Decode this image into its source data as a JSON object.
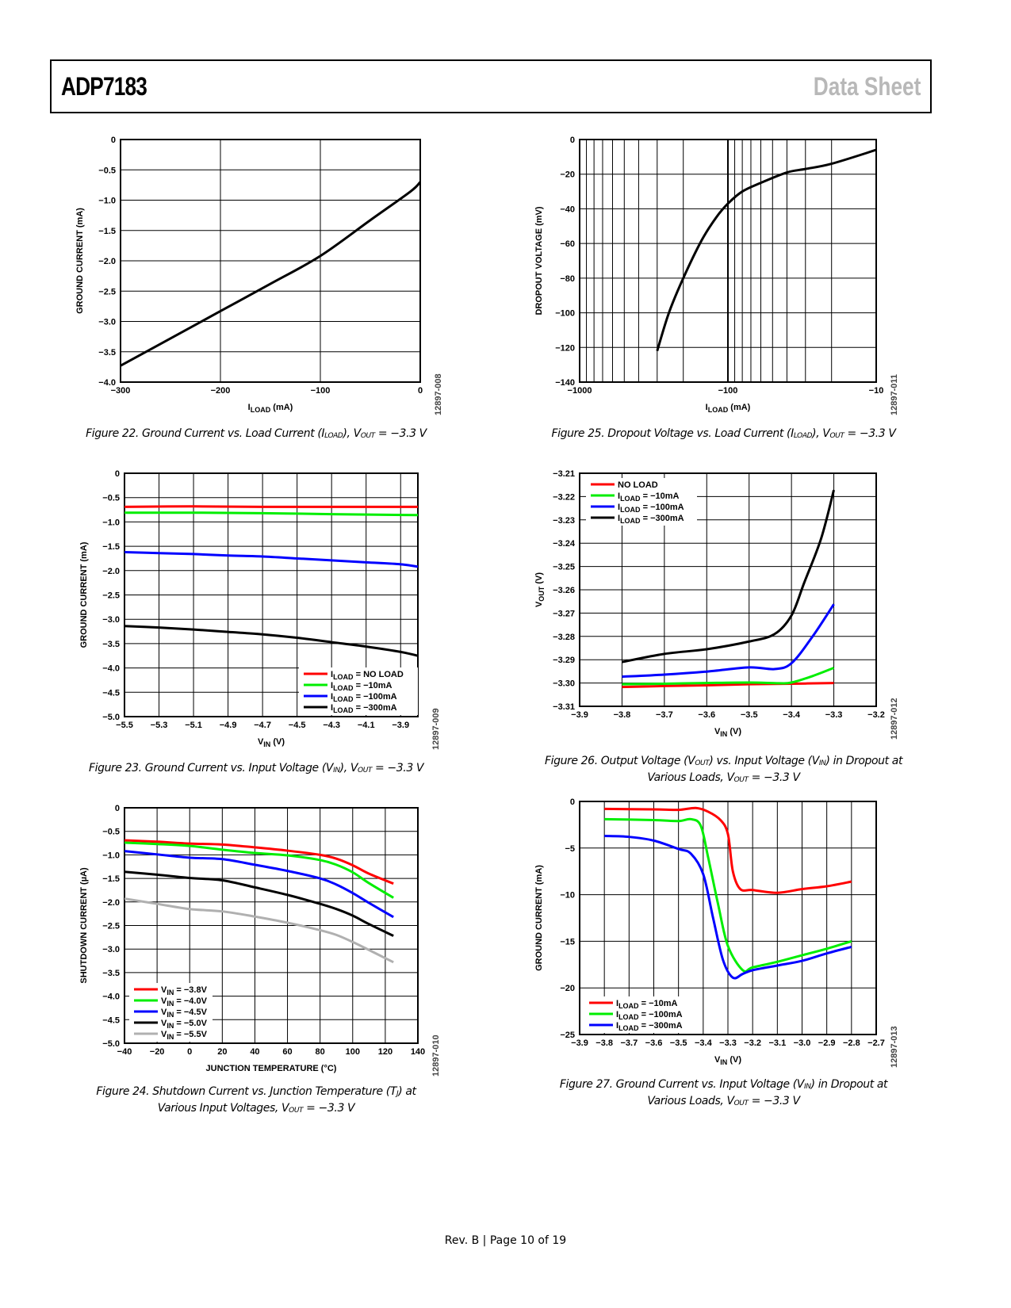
{
  "header": {
    "product": "ADP7183",
    "doc_type": "Data Sheet"
  },
  "footer": {
    "text": "Rev. B | Page 10 of 19"
  },
  "chart_data": [
    {
      "id": "fig22",
      "type": "line",
      "caption": "Figure 22. Ground Current vs. Load Current (Iₗₒₐᴅ), Vₒᵤₜ = −3.3 V",
      "caption_text": "Figure 22. Ground Current vs. Load Current (ILOAD), VOUT = −3.3 V",
      "tag": "12897-008",
      "xlabel": "I_LOAD (mA)",
      "ylabel": "GROUND CURRENT (mA)",
      "xscale": "linear",
      "xlim": [
        -300,
        0
      ],
      "ylim": [
        -4.0,
        0
      ],
      "xticks": [
        -300,
        -200,
        -100,
        0
      ],
      "xtick_labels": [
        "−300",
        "−200",
        "−100",
        "0"
      ],
      "yticks": [
        0,
        -0.5,
        -1.0,
        -1.5,
        -2.0,
        -2.5,
        -3.0,
        -3.5,
        -4.0
      ],
      "ytick_labels": [
        "0",
        "−0.5",
        "−1.0",
        "−1.5",
        "−2.0",
        "−2.5",
        "−3.0",
        "−3.5",
        "−4.0"
      ],
      "grid": true,
      "series": [
        {
          "name": "",
          "color": "#000000",
          "x": [
            -300,
            -250,
            -200,
            -150,
            -100,
            -50,
            -10,
            0
          ],
          "y": [
            -3.73,
            -3.28,
            -2.83,
            -2.38,
            -1.92,
            -1.33,
            -0.86,
            -0.7
          ]
        }
      ]
    },
    {
      "id": "fig25",
      "type": "line",
      "caption_text": "Figure 25. Dropout Voltage vs. Load Current (ILOAD), VOUT = −3.3 V",
      "tag": "12897-011",
      "xlabel": "I_LOAD (mA)",
      "ylabel": "DROPOUT VOLTAGE (mV)",
      "xscale": "log-magnitude",
      "xlim": [
        -1000,
        -10
      ],
      "ylim": [
        -140,
        0
      ],
      "xticks": [
        -1000,
        -100,
        -10
      ],
      "xtick_labels": [
        "−1000",
        "−100",
        "−10"
      ],
      "yticks": [
        0,
        -20,
        -40,
        -60,
        -80,
        -100,
        -120,
        -140
      ],
      "ytick_labels": [
        "0",
        "−20",
        "−40",
        "−60",
        "−80",
        "−100",
        "−120",
        "−140"
      ],
      "grid": true,
      "series": [
        {
          "name": "",
          "color": "#000000",
          "x": [
            -300,
            -250,
            -200,
            -150,
            -120,
            -100,
            -80,
            -60,
            -40,
            -30,
            -20,
            -10
          ],
          "y": [
            -122,
            -100,
            -80,
            -58,
            -45,
            -37,
            -30,
            -25,
            -19,
            -17,
            -14,
            -6
          ]
        }
      ]
    },
    {
      "id": "fig23",
      "type": "line",
      "caption_text": "Figure 23. Ground Current vs. Input Voltage (VIN), VOUT = −3.3 V",
      "tag": "12897-009",
      "xlabel": "V_IN (V)",
      "ylabel": "GROUND CURRENT (mA)",
      "xlim": [
        -5.5,
        -3.8
      ],
      "ylim": [
        -5.0,
        0
      ],
      "xticks": [
        -5.5,
        -5.3,
        -5.1,
        -4.9,
        -4.7,
        -4.5,
        -4.3,
        -4.1,
        -3.9
      ],
      "xtick_labels": [
        "−5.5",
        "−5.3",
        "−5.1",
        "−4.9",
        "−4.7",
        "−4.5",
        "−4.3",
        "−4.1",
        "−3.9"
      ],
      "yticks": [
        0,
        -0.5,
        -1.0,
        -1.5,
        -2.0,
        -2.5,
        -3.0,
        -3.5,
        -4.0,
        -4.5,
        -5.0
      ],
      "ytick_labels": [
        "0",
        "−0.5",
        "−1.0",
        "−1.5",
        "−2.0",
        "−2.5",
        "−3.0",
        "−3.5",
        "−4.0",
        "−4.5",
        "−5.0"
      ],
      "grid": true,
      "legend": "bottom-right",
      "series": [
        {
          "name": "I_LOAD = NO LOAD",
          "color": "#ff0000",
          "x": [
            -5.5,
            -5.1,
            -4.7,
            -4.3,
            -3.8
          ],
          "y": [
            -0.69,
            -0.68,
            -0.69,
            -0.69,
            -0.69
          ]
        },
        {
          "name": "I_LOAD = −10mA",
          "color": "#00ee00",
          "x": [
            -5.5,
            -5.1,
            -4.7,
            -4.3,
            -3.8
          ],
          "y": [
            -0.81,
            -0.81,
            -0.82,
            -0.84,
            -0.86
          ]
        },
        {
          "name": "I_LOAD = −100mA",
          "color": "#0000ff",
          "x": [
            -5.5,
            -5.3,
            -5.1,
            -4.9,
            -4.7,
            -4.5,
            -4.3,
            -4.1,
            -3.9,
            -3.8
          ],
          "y": [
            -1.62,
            -1.64,
            -1.66,
            -1.69,
            -1.71,
            -1.75,
            -1.79,
            -1.83,
            -1.87,
            -1.92
          ]
        },
        {
          "name": "I_LOAD = −300mA",
          "color": "#000000",
          "x": [
            -5.5,
            -5.3,
            -5.1,
            -4.9,
            -4.7,
            -4.5,
            -4.3,
            -4.1,
            -3.9,
            -3.8
          ],
          "y": [
            -3.14,
            -3.17,
            -3.21,
            -3.26,
            -3.31,
            -3.38,
            -3.47,
            -3.56,
            -3.67,
            -3.75
          ]
        }
      ]
    },
    {
      "id": "fig26",
      "type": "line",
      "caption_text": "Figure 26. Output Voltage (VOUT) vs. Input Voltage (VIN) in Dropout at Various Loads, VOUT = −3.3 V",
      "tag": "12897-012",
      "xlabel": "V_IN (V)",
      "ylabel": "V_OUT (V)",
      "xlim": [
        -3.9,
        -3.2
      ],
      "ylim": [
        -3.31,
        -3.21
      ],
      "xticks": [
        -3.9,
        -3.8,
        -3.7,
        -3.6,
        -3.5,
        -3.4,
        -3.3,
        -3.2
      ],
      "xtick_labels": [
        "−3.9",
        "−3.8",
        "−3.7",
        "−3.6",
        "−3.5",
        "−3.4",
        "−3.3",
        "−3.2"
      ],
      "yticks": [
        -3.21,
        -3.22,
        -3.23,
        -3.24,
        -3.25,
        -3.26,
        -3.27,
        -3.28,
        -3.29,
        -3.3,
        -3.31
      ],
      "ytick_labels": [
        "−3.21",
        "−3.22",
        "−3.23",
        "−3.24",
        "−3.25",
        "−3.26",
        "−3.27",
        "−3.28",
        "−3.29",
        "−3.30",
        "−3.31"
      ],
      "grid": true,
      "legend": "top-left",
      "series": [
        {
          "name": "NO LOAD",
          "color": "#ff0000",
          "x": [
            -3.8,
            -3.7,
            -3.6,
            -3.5,
            -3.4,
            -3.3
          ],
          "y": [
            -3.3017,
            -3.3013,
            -3.301,
            -3.3005,
            -3.3003,
            -3.3
          ]
        },
        {
          "name": "I_LOAD = −10mA",
          "color": "#00ee00",
          "x": [
            -3.8,
            -3.7,
            -3.6,
            -3.5,
            -3.43,
            -3.4,
            -3.35,
            -3.3
          ],
          "y": [
            -3.3005,
            -3.3003,
            -3.3,
            -3.2998,
            -3.3001,
            -3.2998,
            -3.297,
            -3.2935
          ]
        },
        {
          "name": "I_LOAD = −100mA",
          "color": "#0000ff",
          "x": [
            -3.8,
            -3.7,
            -3.6,
            -3.5,
            -3.44,
            -3.4,
            -3.35,
            -3.3
          ],
          "y": [
            -3.2973,
            -3.2964,
            -3.2951,
            -3.2933,
            -3.294,
            -3.2915,
            -3.28,
            -3.2662
          ]
        },
        {
          "name": "I_LOAD = −300mA",
          "color": "#000000",
          "x": [
            -3.8,
            -3.7,
            -3.6,
            -3.5,
            -3.44,
            -3.4,
            -3.37,
            -3.33,
            -3.3
          ],
          "y": [
            -3.291,
            -3.2875,
            -3.2855,
            -3.2822,
            -3.279,
            -3.271,
            -3.257,
            -3.238,
            -3.2172
          ]
        }
      ]
    },
    {
      "id": "fig24",
      "type": "line",
      "caption_text": "Figure 24. Shutdown Current vs. Junction Temperature (TJ) at Various Input Voltages, VOUT = −3.3 V",
      "tag": "12897-010",
      "xlabel": "JUNCTION TEMPERATURE (°C)",
      "ylabel": "SHUTDOWN CURRENT (µA)",
      "xlim": [
        -40,
        140
      ],
      "ylim": [
        -5.0,
        0
      ],
      "xticks": [
        -40,
        -20,
        0,
        20,
        40,
        60,
        80,
        100,
        120,
        140
      ],
      "xtick_labels": [
        "−40",
        "−20",
        "0",
        "20",
        "40",
        "60",
        "80",
        "100",
        "120",
        "140"
      ],
      "yticks": [
        0,
        -0.5,
        -1.0,
        -1.5,
        -2.0,
        -2.5,
        -3.0,
        -3.5,
        -4.0,
        -4.5,
        -5.0
      ],
      "ytick_labels": [
        "0",
        "−0.5",
        "−1.0",
        "−1.5",
        "−2.0",
        "−2.5",
        "−3.0",
        "−3.5",
        "−4.0",
        "−4.5",
        "−5.0"
      ],
      "grid": true,
      "legend": "bottom-left",
      "series": [
        {
          "name": "V_IN = −3.8V",
          "color": "#ff0000",
          "x": [
            -40,
            -20,
            0,
            20,
            40,
            60,
            80,
            90,
            100,
            110,
            125
          ],
          "y": [
            -0.69,
            -0.72,
            -0.76,
            -0.78,
            -0.84,
            -0.91,
            -1.0,
            -1.08,
            -1.22,
            -1.4,
            -1.61
          ]
        },
        {
          "name": "V_IN = −4.0V",
          "color": "#00ee00",
          "x": [
            -40,
            -20,
            0,
            20,
            40,
            60,
            80,
            90,
            100,
            110,
            125
          ],
          "y": [
            -0.74,
            -0.77,
            -0.81,
            -0.89,
            -0.96,
            -1.01,
            -1.11,
            -1.21,
            -1.37,
            -1.6,
            -1.91
          ]
        },
        {
          "name": "V_IN = −4.5V",
          "color": "#0000ff",
          "x": [
            -40,
            -20,
            0,
            20,
            40,
            60,
            80,
            90,
            100,
            110,
            125
          ],
          "y": [
            -0.92,
            -0.99,
            -1.06,
            -1.09,
            -1.21,
            -1.34,
            -1.5,
            -1.63,
            -1.81,
            -2.02,
            -2.32
          ]
        },
        {
          "name": "V_IN = −5.0V",
          "color": "#000000",
          "x": [
            -40,
            -20,
            0,
            20,
            40,
            60,
            80,
            90,
            100,
            110,
            125
          ],
          "y": [
            -1.36,
            -1.42,
            -1.49,
            -1.54,
            -1.69,
            -1.85,
            -2.04,
            -2.15,
            -2.29,
            -2.47,
            -2.72
          ]
        },
        {
          "name": "V_IN = −5.5V",
          "color": "#b0b0b0",
          "x": [
            -40,
            -20,
            0,
            20,
            40,
            60,
            80,
            90,
            100,
            110,
            125
          ],
          "y": [
            -1.93,
            -2.04,
            -2.15,
            -2.2,
            -2.31,
            -2.44,
            -2.6,
            -2.7,
            -2.85,
            -3.02,
            -3.28
          ]
        }
      ]
    },
    {
      "id": "fig27",
      "type": "line",
      "caption_text": "Figure 27. Ground Current vs. Input Voltage (VIN) in Dropout at Various Loads, VOUT = −3.3 V",
      "tag": "12897-013",
      "xlabel": "V_IN (V)",
      "ylabel": "GROUND CURRENT (mA)",
      "xlim": [
        -3.9,
        -2.7
      ],
      "ylim": [
        -25,
        0
      ],
      "xticks": [
        -3.9,
        -3.8,
        -3.7,
        -3.6,
        -3.5,
        -3.4,
        -3.3,
        -3.2,
        -3.1,
        -3.0,
        -2.9,
        -2.8,
        -2.7
      ],
      "xtick_labels": [
        "−3.9",
        "−3.8",
        "−3.7",
        "−3.6",
        "−3.5",
        "−3.4",
        "−3.3",
        "−3.2",
        "−3.1",
        "−3.0",
        "−2.9",
        "−2.8",
        "−2.7"
      ],
      "yticks": [
        0,
        -5,
        -10,
        -15,
        -20,
        -25
      ],
      "ytick_labels": [
        "0",
        "−5",
        "−10",
        "−15",
        "−20",
        "−25"
      ],
      "grid": true,
      "legend": "bottom-left",
      "series": [
        {
          "name": "I_LOAD = −10mA",
          "color": "#ff0000",
          "x": [
            -3.8,
            -3.6,
            -3.5,
            -3.43,
            -3.38,
            -3.33,
            -3.3,
            -3.28,
            -3.25,
            -3.2,
            -3.1,
            -3.0,
            -2.9,
            -2.8
          ],
          "y": [
            -0.8,
            -0.85,
            -0.9,
            -0.7,
            -1.1,
            -2.0,
            -3.5,
            -7.5,
            -9.4,
            -9.5,
            -9.8,
            -9.4,
            -9.1,
            -8.6
          ]
        },
        {
          "name": "I_LOAD = −100mA",
          "color": "#00ee00",
          "x": [
            -3.8,
            -3.6,
            -3.5,
            -3.45,
            -3.41,
            -3.38,
            -3.34,
            -3.3,
            -3.24,
            -3.2,
            -3.1,
            -3.0,
            -2.9,
            -2.8
          ],
          "y": [
            -1.9,
            -2.0,
            -2.1,
            -1.9,
            -2.6,
            -6.0,
            -11.0,
            -15.5,
            -18.1,
            -17.8,
            -17.2,
            -16.5,
            -15.8,
            -15.0
          ]
        },
        {
          "name": "I_LOAD = −300mA",
          "color": "#0000ff",
          "x": [
            -3.8,
            -3.7,
            -3.6,
            -3.5,
            -3.45,
            -3.4,
            -3.36,
            -3.32,
            -3.28,
            -3.24,
            -3.2,
            -3.1,
            -3.0,
            -2.9,
            -2.8
          ],
          "y": [
            -3.7,
            -3.8,
            -4.2,
            -5.1,
            -5.6,
            -7.8,
            -12.5,
            -17.0,
            -18.9,
            -18.5,
            -18.1,
            -17.6,
            -17.1,
            -16.3,
            -15.6
          ]
        }
      ]
    }
  ],
  "captions": {
    "fig22": [
      "Figure 22. Ground Current vs. Load Current (I",
      "LOAD",
      "), V",
      "OUT",
      " = −3.3 V"
    ],
    "fig25": [
      "Figure 25. Dropout Voltage vs. Load Current (I",
      "LOAD",
      "), V",
      "OUT",
      " = −3.3 V"
    ],
    "fig23": [
      "Figure 23. Ground Current vs. Input Voltage (V",
      "IN",
      "), V",
      "OUT",
      " = −3.3 V"
    ],
    "fig26_l1": [
      "Figure 26. Output Voltage (V",
      "OUT",
      ") vs. Input Voltage (V",
      "IN",
      ") in Dropout at"
    ],
    "fig26_l2": [
      "Various Loads, V",
      "OUT",
      " = −3.3 V"
    ],
    "fig24_l1": [
      "Figure 24. Shutdown Current vs. Junction Temperature (T",
      "J",
      ") at"
    ],
    "fig24_l2": [
      "Various Input Voltages, V",
      "OUT",
      " = −3.3 V"
    ],
    "fig27_l1": [
      "Figure 27. Ground Current vs. Input Voltage (V",
      "IN",
      ") in Dropout at"
    ],
    "fig27_l2": [
      "Various Loads, V",
      "OUT",
      " = −3.3 V"
    ]
  }
}
